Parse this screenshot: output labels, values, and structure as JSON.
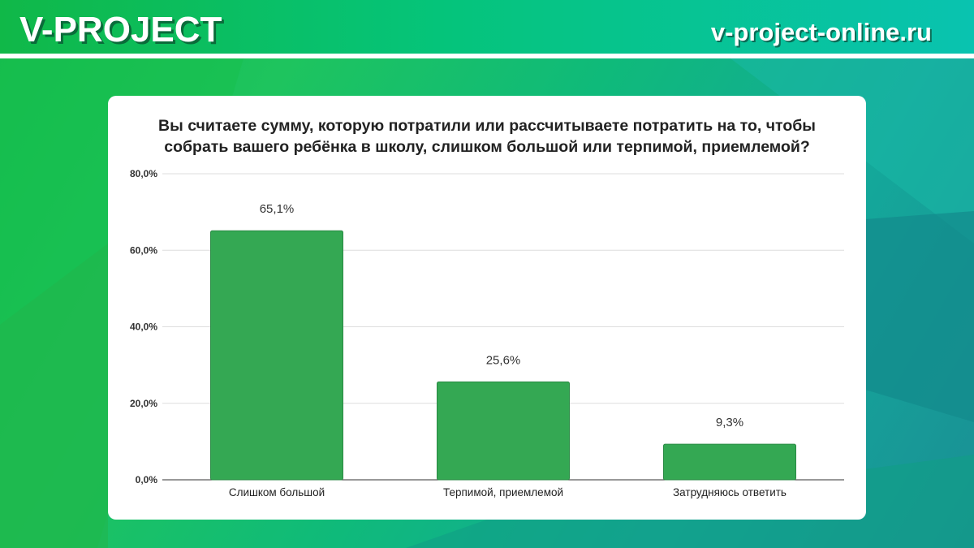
{
  "header": {
    "logo": "V-PROJECT",
    "site": "v-project-online.ru"
  },
  "chart_data": {
    "type": "bar",
    "title_lines": [
      "Вы считаете сумму, которую потратили или рассчитываете потратить на то, чтобы",
      "собрать вашего ребёнка в школу, слишком большой или терпимой, приемлемой?"
    ],
    "categories": [
      "Слишком большой",
      "Терпимой, приемлемой",
      "Затрудняюсь ответить"
    ],
    "values": [
      65.1,
      25.6,
      9.3
    ],
    "data_labels": [
      "65,1%",
      "25,6%",
      "9,3%"
    ],
    "yticks": [
      0,
      20,
      40,
      60,
      80
    ],
    "ytick_labels": [
      "0,0%",
      "20,0%",
      "40,0%",
      "60,0%",
      "80,0%"
    ],
    "ylim": [
      0,
      80
    ],
    "xlabel": "",
    "ylabel": "",
    "grid": true,
    "bar_color": "#34a853"
  }
}
